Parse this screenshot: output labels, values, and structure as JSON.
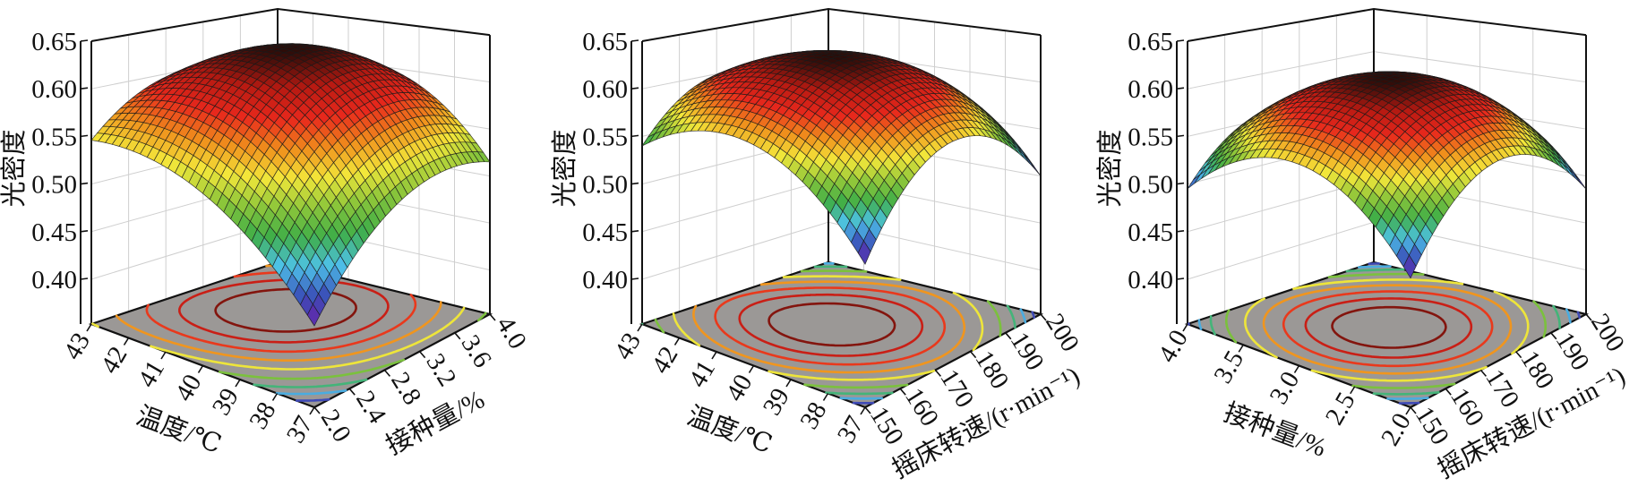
{
  "colormap": [
    "#6a1fa8",
    "#3a4fb8",
    "#4ec3ea",
    "#3fae48",
    "#8cc63a",
    "#f3e73a",
    "#f0901c",
    "#e8281c",
    "#b81a12",
    "#2a0c08"
  ],
  "floor_color": "#9b9896",
  "mesh_line_color": "#1a1a1a",
  "chart_data": [
    {
      "type": "surface3d",
      "zlabel": "光密度",
      "xlabel": "温度/℃",
      "ylabel": "接种量/%",
      "xlim": [
        37,
        43
      ],
      "ylim": [
        2.0,
        4.0
      ],
      "zlim": [
        0.35,
        0.65
      ],
      "xticks": [
        "37",
        "38",
        "39",
        "40",
        "41",
        "42",
        "43"
      ],
      "yticks": [
        "2.0",
        "2.4",
        "2.8",
        "3.2",
        "3.6",
        "4.0"
      ],
      "zticks": [
        "0.40",
        "0.45",
        "0.50",
        "0.55",
        "0.60",
        "0.65"
      ],
      "x_grid": [
        37,
        40,
        43
      ],
      "y_grid": [
        2.0,
        3.0,
        4.0
      ],
      "z_grid": [
        [
          0.435,
          0.52,
          0.515
        ],
        [
          0.53,
          0.63,
          0.6
        ],
        [
          0.546,
          0.6,
          0.56
        ]
      ],
      "floor_contours": true
    },
    {
      "type": "surface3d",
      "zlabel": "光密度",
      "xlabel": "温度/℃",
      "ylabel": "摇床转速/(r·min⁻¹)",
      "xlim": [
        37,
        43
      ],
      "ylim": [
        150,
        200
      ],
      "zlim": [
        0.35,
        0.65
      ],
      "xticks": [
        "37",
        "38",
        "39",
        "40",
        "41",
        "42",
        "43"
      ],
      "yticks": [
        "150",
        "160",
        "170",
        "180",
        "190",
        "200"
      ],
      "zticks": [
        "0.40",
        "0.45",
        "0.50",
        "0.55",
        "0.60",
        "0.65"
      ],
      "x_grid": [
        37,
        40,
        43
      ],
      "y_grid": [
        150,
        175,
        200
      ],
      "z_grid": [
        [
          0.497,
          0.58,
          0.5
        ],
        [
          0.58,
          0.64,
          0.58
        ],
        [
          0.54,
          0.6,
          0.52
        ]
      ],
      "floor_contours": true
    },
    {
      "type": "surface3d",
      "zlabel": "光密度",
      "xlabel": "接种量/%",
      "ylabel": "摇床转速/(r·min⁻¹)",
      "xlim": [
        2.0,
        4.0
      ],
      "ylim": [
        150,
        200
      ],
      "zlim": [
        0.35,
        0.65
      ],
      "xticks": [
        "2.0",
        "2.5",
        "3.0",
        "3.5",
        "4.0"
      ],
      "yticks": [
        "150",
        "160",
        "170",
        "180",
        "190",
        "200"
      ],
      "zticks": [
        "0.40",
        "0.45",
        "0.50",
        "0.55",
        "0.60",
        "0.65"
      ],
      "x_grid": [
        2.0,
        3.0,
        4.0
      ],
      "y_grid": [
        150,
        175,
        200
      ],
      "z_grid": [
        [
          0.483,
          0.56,
          0.486
        ],
        [
          0.56,
          0.62,
          0.56
        ],
        [
          0.495,
          0.56,
          0.49
        ]
      ],
      "floor_contours": true
    }
  ]
}
